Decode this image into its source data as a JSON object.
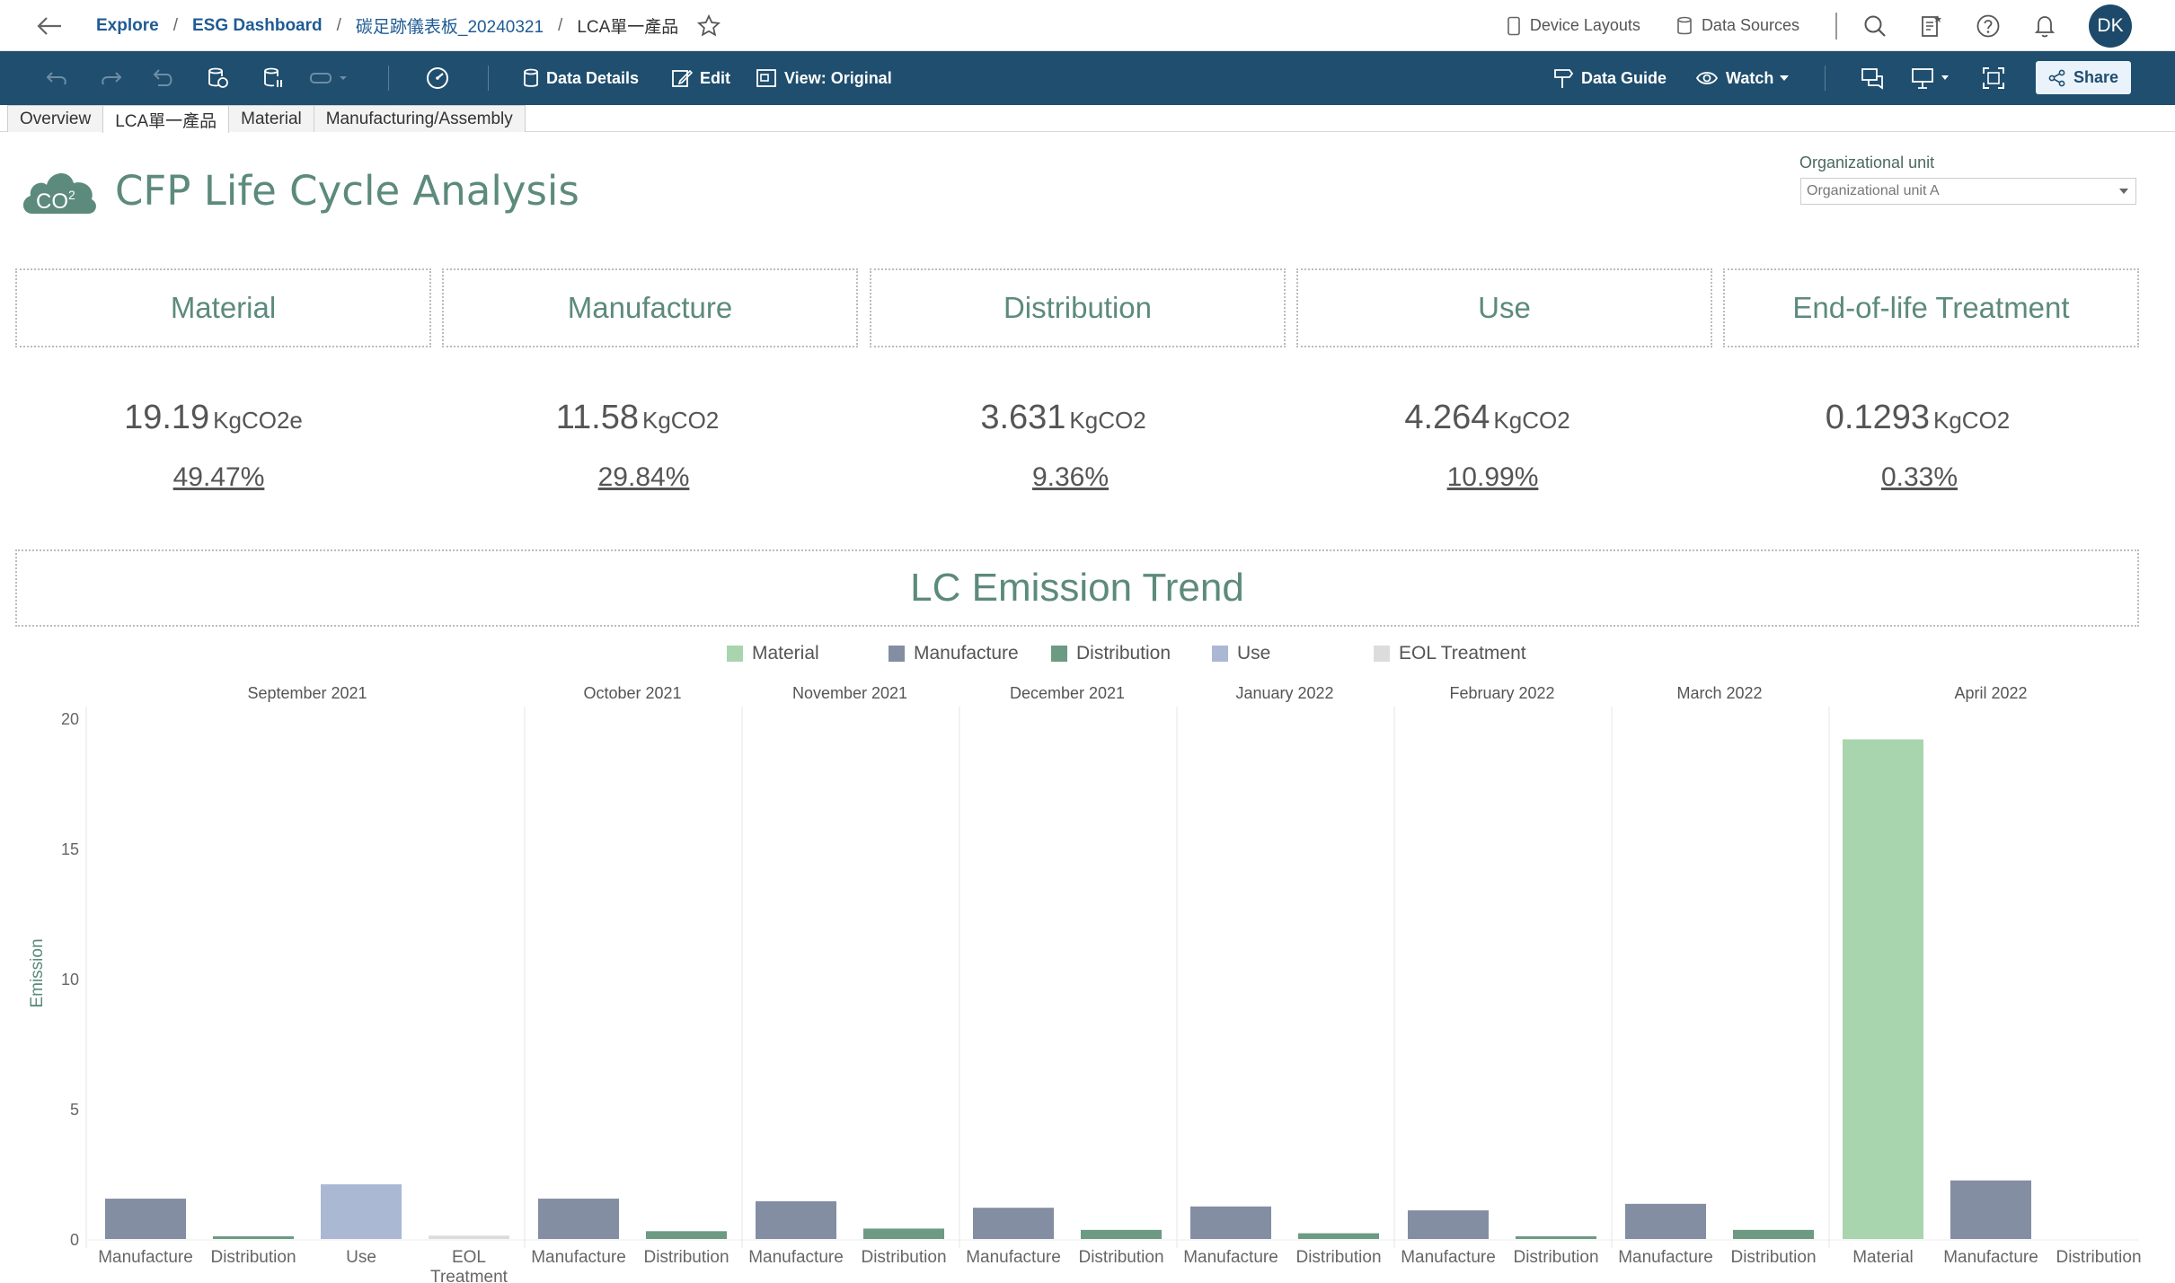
{
  "header": {
    "breadcrumbs": [
      "Explore",
      "ESG Dashboard",
      "碳足跡儀表板_20240321",
      "LCA單一產品"
    ],
    "device_layouts": "Device Layouts",
    "data_sources": "Data Sources",
    "avatar_initials": "DK"
  },
  "toolbar": {
    "data_details": "Data Details",
    "edit": "Edit",
    "view": "View: Original",
    "data_guide": "Data Guide",
    "watch": "Watch",
    "share": "Share"
  },
  "tabs": [
    {
      "label": "Overview",
      "active": false
    },
    {
      "label": "LCA單一產品",
      "active": true
    },
    {
      "label": "Material",
      "active": false
    },
    {
      "label": "Manufacturing/Assembly",
      "active": false
    }
  ],
  "dashboard": {
    "title": "CFP Life Cycle Analysis",
    "logo_text": "CO",
    "logo_sup": "2",
    "org_filter_label": "Organizational unit",
    "org_filter_value": "Organizational unit A",
    "stages": [
      {
        "name": "Material",
        "value": "19.19",
        "unit": "KgCO2e",
        "percent": "49.47%"
      },
      {
        "name": "Manufacture",
        "value": "11.58",
        "unit": "KgCO2",
        "percent": "29.84%"
      },
      {
        "name": "Distribution",
        "value": "3.631",
        "unit": "KgCO2",
        "percent": "9.36%"
      },
      {
        "name": "Use",
        "value": "4.264",
        "unit": "KgCO2",
        "percent": "10.99%"
      },
      {
        "name": "End-of-life Treatment",
        "value": "0.1293",
        "unit": "KgCO2",
        "percent": "0.33%"
      }
    ],
    "trend_title": "LC Emission Trend"
  },
  "colors": {
    "Material": "#a8d5ae",
    "Manufacture": "#838ea3",
    "Distribution": "#6d9a83",
    "Use": "#aab8d4",
    "EOL Treatment": "#dcdcdc",
    "accent_green": "#5c8a7c",
    "toolbar_blue": "#1f4e6e"
  },
  "chart_data": {
    "type": "bar",
    "ylabel": "Emission",
    "ylim": [
      0,
      20
    ],
    "yticks": [
      0,
      5,
      10,
      15,
      20
    ],
    "legend": [
      "Material",
      "Manufacture",
      "Distribution",
      "Use",
      "EOL Treatment"
    ],
    "months": [
      {
        "month": "September 2021",
        "bars": [
          {
            "category": "Manufacture",
            "label": "Manufacture",
            "value": 1.55
          },
          {
            "category": "Distribution",
            "label": "Distribution",
            "value": 0.05
          },
          {
            "category": "Use",
            "label": "Use",
            "value": 2.1
          },
          {
            "category": "EOL Treatment",
            "label": "EOL Treatment",
            "value": 0.13
          }
        ]
      },
      {
        "month": "October 2021",
        "bars": [
          {
            "category": "Manufacture",
            "label": "Manufacture",
            "value": 1.55
          },
          {
            "category": "Distribution",
            "label": "Distribution",
            "value": 0.3
          }
        ]
      },
      {
        "month": "November 2021",
        "bars": [
          {
            "category": "Manufacture",
            "label": "Manufacture",
            "value": 1.45
          },
          {
            "category": "Distribution",
            "label": "Distribution",
            "value": 0.4
          }
        ]
      },
      {
        "month": "December 2021",
        "bars": [
          {
            "category": "Manufacture",
            "label": "Manufacture",
            "value": 1.2
          },
          {
            "category": "Distribution",
            "label": "Distribution",
            "value": 0.35
          }
        ]
      },
      {
        "month": "January 2022",
        "bars": [
          {
            "category": "Manufacture",
            "label": "Manufacture",
            "value": 1.25
          },
          {
            "category": "Distribution",
            "label": "Distribution",
            "value": 0.22
          }
        ]
      },
      {
        "month": "February 2022",
        "bars": [
          {
            "category": "Manufacture",
            "label": "Manufacture",
            "value": 1.1
          },
          {
            "category": "Distribution",
            "label": "Distribution",
            "value": 0.1
          }
        ]
      },
      {
        "month": "March 2022",
        "bars": [
          {
            "category": "Manufacture",
            "label": "Manufacture",
            "value": 1.35
          },
          {
            "category": "Distribution",
            "label": "Distribution",
            "value": 0.35
          }
        ]
      },
      {
        "month": "April 2022",
        "bars": [
          {
            "category": "Material",
            "label": "Material",
            "value": 19.19
          },
          {
            "category": "Manufacture",
            "label": "Manufacture",
            "value": 2.25
          },
          {
            "category": "Distribution",
            "label": "Distribution",
            "value": 0
          }
        ]
      }
    ]
  }
}
